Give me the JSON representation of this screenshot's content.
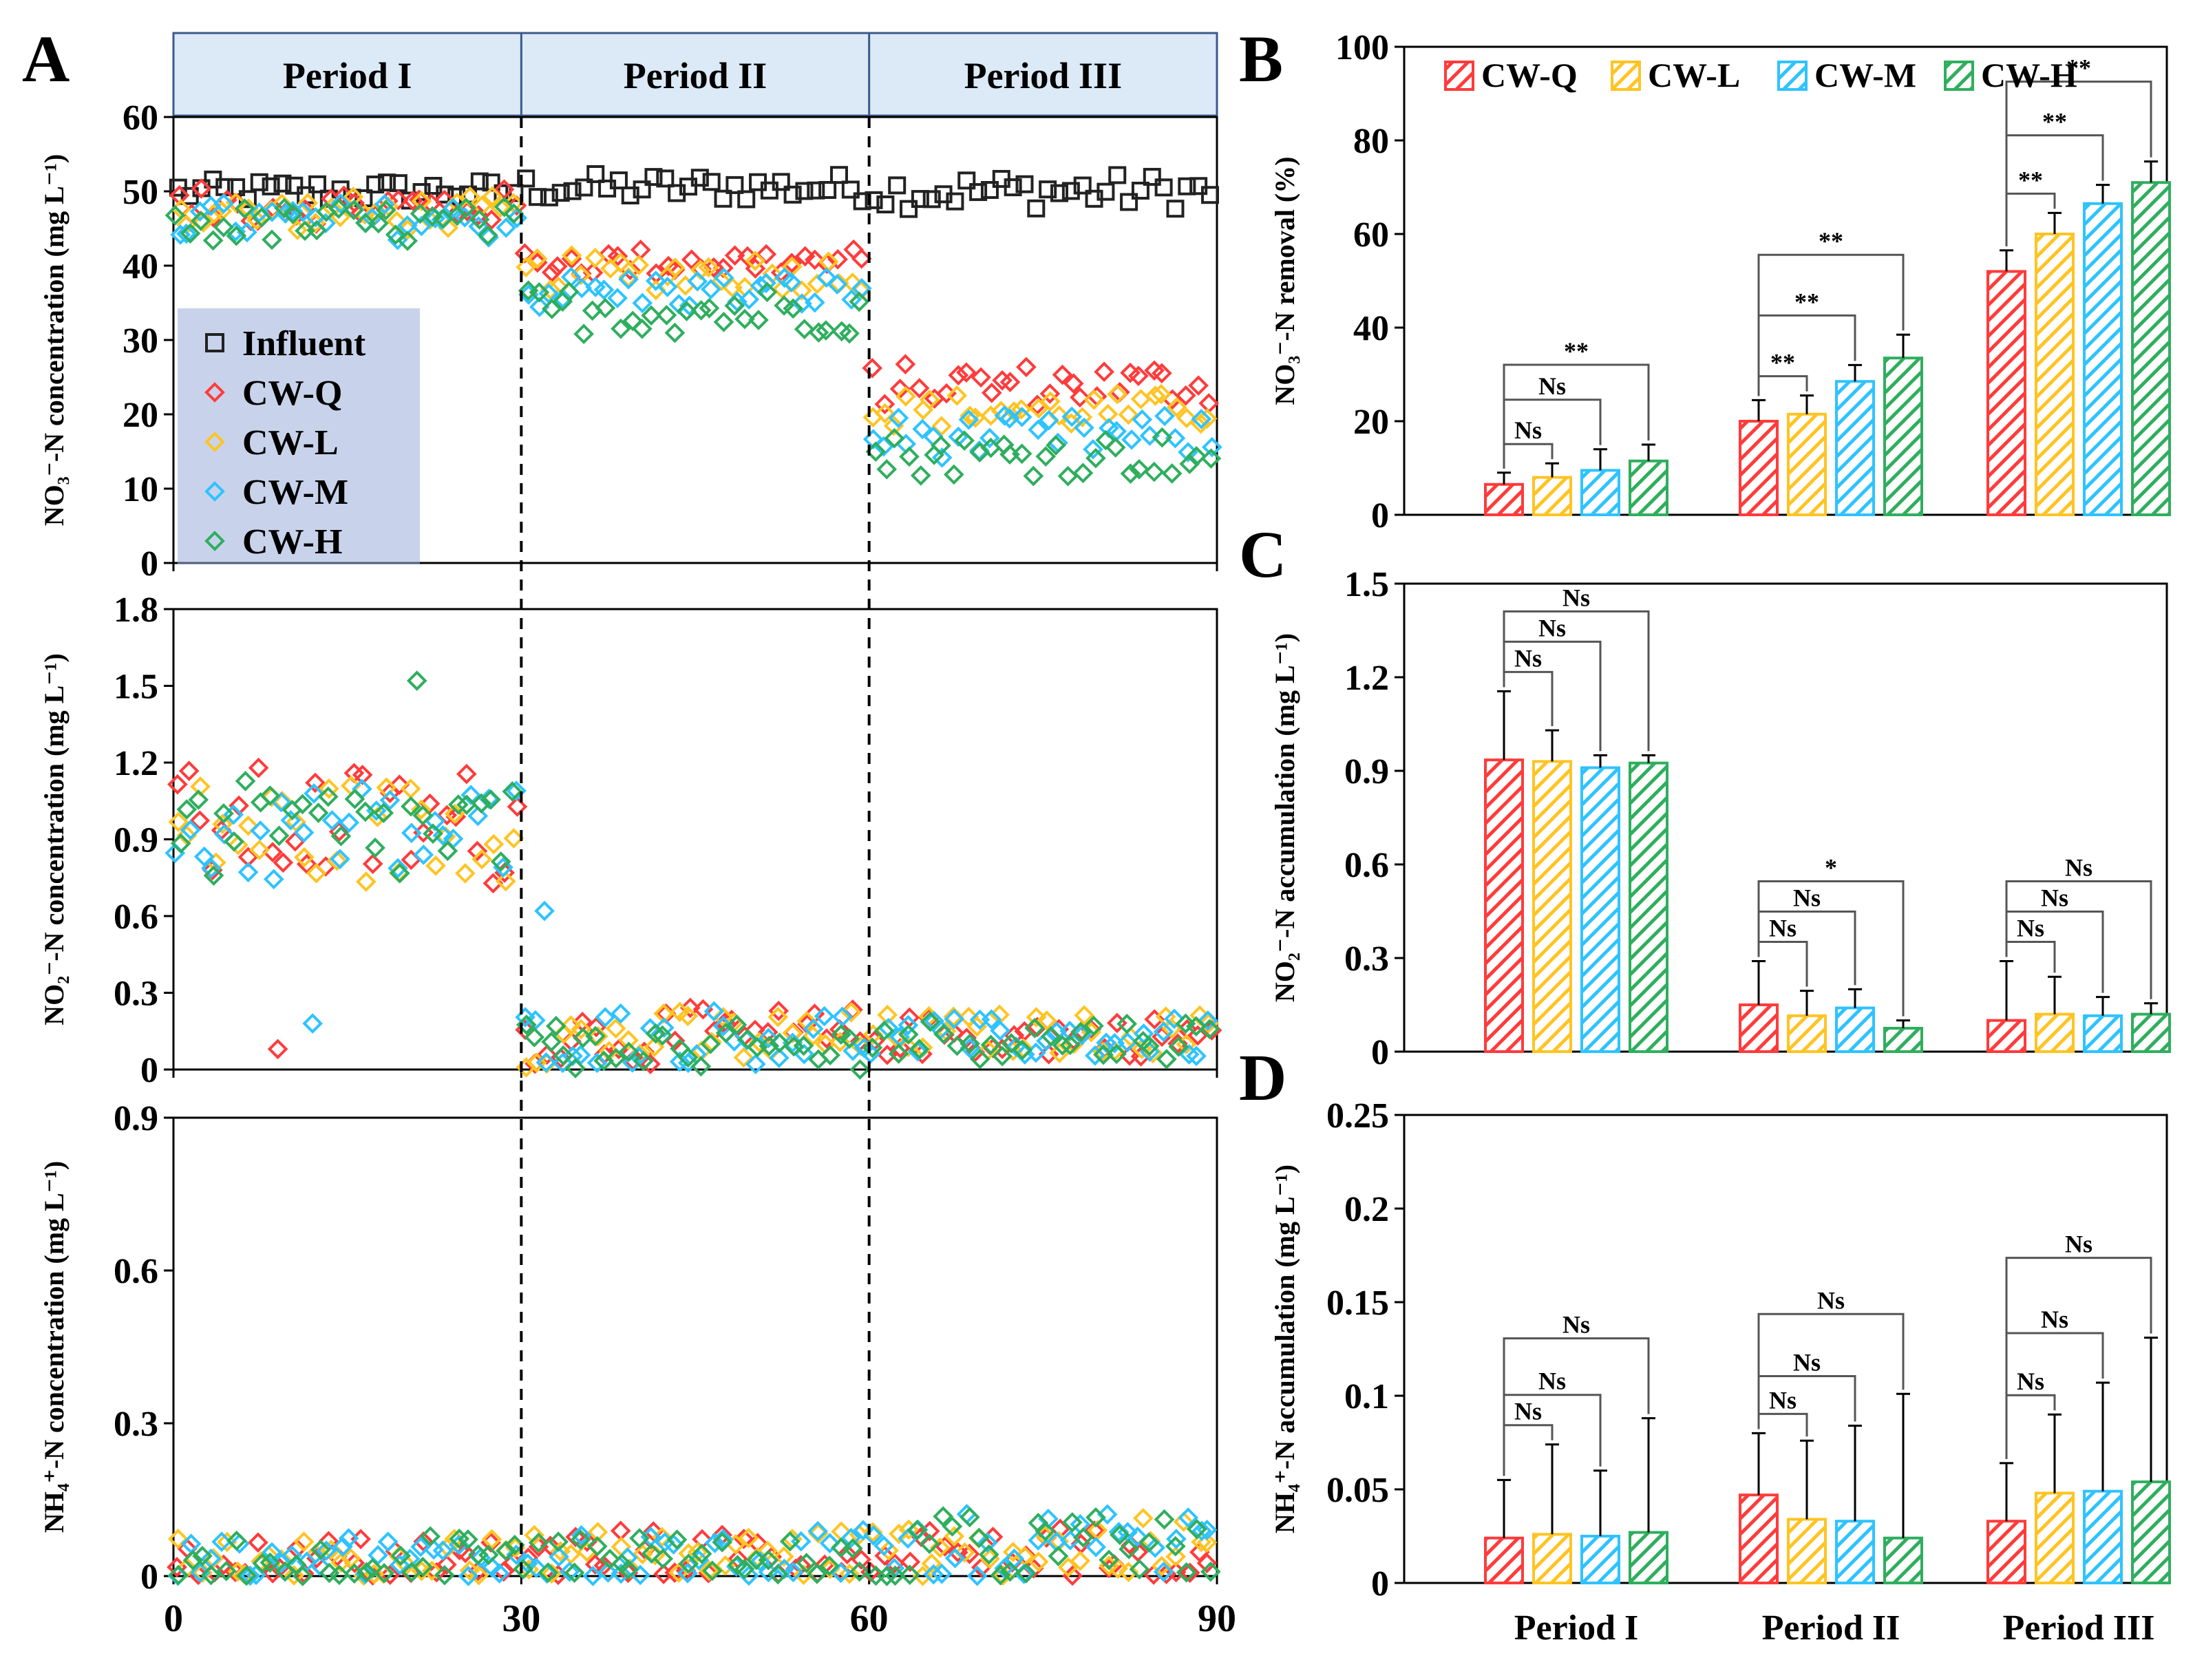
{
  "colors": {
    "influent": "#222222",
    "cw_q": "#ff3b3b",
    "cw_l": "#ffc423",
    "cw_m": "#2ec3ff",
    "cw_h": "#2fae5e",
    "period_band": "#dce9f6",
    "legend_box": "#9aaedb",
    "axis": "#000000"
  },
  "series_names": [
    "CW-Q",
    "CW-L",
    "CW-M",
    "CW-H"
  ],
  "chart_data": [
    {
      "id": "A",
      "type": "scatter",
      "panel_label": "A",
      "periods": [
        "Period I",
        "Period II",
        "Period III"
      ],
      "period_bounds": [
        0,
        30,
        60,
        90
      ],
      "xlim": [
        0,
        90
      ],
      "xticks": [
        "0",
        "30",
        "60",
        "90"
      ],
      "legend": [
        "Influent",
        "CW-Q",
        "CW-L",
        "CW-M",
        "CW-H"
      ],
      "subplots": [
        {
          "id": "A1",
          "ylabel": "NO₃⁻-N concentration (mg L⁻¹)",
          "ylim": [
            0,
            60
          ],
          "yticks": [
            "0",
            "10",
            "20",
            "30",
            "40",
            "50",
            "60"
          ],
          "influent": {
            "p1": [
              50,
              1.0
            ],
            "p2": [
              50.5,
              1.2
            ],
            "p3": [
              50,
              1.5
            ]
          },
          "series": [
            {
              "name": "CW-Q",
              "p1": [
                48,
                1.5
              ],
              "p2": [
                40.5,
                1.2
              ],
              "p3": [
                24,
                1.8
              ]
            },
            {
              "name": "CW-L",
              "p1": [
                47,
                1.5
              ],
              "p2": [
                39,
                1.5
              ],
              "p3": [
                20.5,
                1.5
              ]
            },
            {
              "name": "CW-M",
              "p1": [
                46,
                1.6
              ],
              "p2": [
                36.5,
                1.5
              ],
              "p3": [
                17,
                1.8
              ]
            },
            {
              "name": "CW-H",
              "p1": [
                45.5,
                1.6
              ],
              "p2": [
                34,
                2.0
              ],
              "p3": [
                14.5,
                1.8
              ]
            }
          ]
        },
        {
          "id": "A2",
          "ylabel": "NO₂⁻-N concentration (mg L⁻¹)",
          "ylim": [
            0,
            1.8
          ],
          "yticks": [
            "0",
            "0.3",
            "0.6",
            "0.9",
            "1.2",
            "1.5",
            "1.8"
          ],
          "series": [
            {
              "name": "CW-Q",
              "p1": [
                0.95,
                0.15
              ],
              "p2": [
                0.13,
                0.07
              ],
              "p3": [
                0.13,
                0.05
              ]
            },
            {
              "name": "CW-L",
              "p1": [
                0.93,
                0.13
              ],
              "p2": [
                0.12,
                0.07
              ],
              "p3": [
                0.14,
                0.05
              ]
            },
            {
              "name": "CW-M",
              "p1": [
                0.92,
                0.13
              ],
              "p2": [
                0.13,
                0.07
              ],
              "p3": [
                0.12,
                0.05
              ]
            },
            {
              "name": "CW-H",
              "p1": [
                0.92,
                0.13
              ],
              "p2": [
                0.08,
                0.06
              ],
              "p3": [
                0.12,
                0.05
              ]
            }
          ],
          "outliers": [
            {
              "series": "CW-Q",
              "day": 9,
              "value": 0.08
            },
            {
              "series": "CW-M",
              "day": 12,
              "value": 0.18
            },
            {
              "series": "CW-H",
              "day": 21,
              "value": 1.52
            },
            {
              "series": "CW-M",
              "day": 32,
              "value": 0.62
            },
            {
              "series": "CW-H",
              "day": 33,
              "value": 0.17
            }
          ]
        },
        {
          "id": "A3",
          "ylabel": "NH₄⁺-N concentration (mg L⁻¹)",
          "ylim": [
            0,
            0.9
          ],
          "yticks": [
            "0",
            "0.3",
            "0.6",
            "0.9"
          ],
          "series": [
            {
              "name": "CW-Q",
              "p1": [
                0.03,
                0.03
              ],
              "p2": [
                0.04,
                0.035
              ],
              "p3": [
                0.04,
                0.035
              ]
            },
            {
              "name": "CW-L",
              "p1": [
                0.03,
                0.03
              ],
              "p2": [
                0.04,
                0.035
              ],
              "p3": [
                0.05,
                0.04
              ]
            },
            {
              "name": "CW-M",
              "p1": [
                0.03,
                0.03
              ],
              "p2": [
                0.035,
                0.035
              ],
              "p3": [
                0.05,
                0.045
              ]
            },
            {
              "name": "CW-H",
              "p1": [
                0.03,
                0.03
              ],
              "p2": [
                0.03,
                0.03
              ],
              "p3": [
                0.05,
                0.045
              ]
            }
          ]
        }
      ]
    },
    {
      "id": "B",
      "type": "bar",
      "panel_label": "B",
      "ylabel": "NO₃⁻-N removal (%)",
      "ylim": [
        0,
        100
      ],
      "yticks": [
        "0",
        "20",
        "40",
        "60",
        "80",
        "100"
      ],
      "categories": [
        "Period I",
        "Period II",
        "Period III"
      ],
      "series": [
        {
          "name": "CW-Q",
          "values": [
            6.5,
            20,
            52
          ],
          "errors": [
            2.5,
            4.5,
            4.5
          ]
        },
        {
          "name": "CW-L",
          "values": [
            8,
            21.5,
            60
          ],
          "errors": [
            3,
            4,
            4.5
          ]
        },
        {
          "name": "CW-M",
          "values": [
            9.5,
            28.5,
            66.5
          ],
          "errors": [
            4.5,
            3.5,
            4
          ]
        },
        {
          "name": "CW-H",
          "values": [
            11.5,
            33.5,
            71
          ],
          "errors": [
            3.5,
            5,
            4.5
          ]
        }
      ],
      "significance": [
        [
          "Ns",
          "**",
          "**"
        ],
        [
          "Ns",
          "**",
          "**"
        ],
        [
          "**",
          "**",
          "**"
        ]
      ]
    },
    {
      "id": "C",
      "type": "bar",
      "panel_label": "C",
      "ylabel": "NO₂⁻-N accumulation (mg L⁻¹)",
      "ylim": [
        0,
        1.5
      ],
      "yticks": [
        "0",
        "0.3",
        "0.6",
        "0.9",
        "1.2",
        "1.5"
      ],
      "categories": [
        "Period I",
        "Period II",
        "Period III"
      ],
      "series": [
        {
          "name": "CW-Q",
          "values": [
            0.935,
            0.15,
            0.1
          ],
          "errors": [
            0.22,
            0.14,
            0.19
          ]
        },
        {
          "name": "CW-L",
          "values": [
            0.93,
            0.115,
            0.12
          ],
          "errors": [
            0.1,
            0.08,
            0.12
          ]
        },
        {
          "name": "CW-M",
          "values": [
            0.91,
            0.14,
            0.115
          ],
          "errors": [
            0.04,
            0.06,
            0.06
          ]
        },
        {
          "name": "CW-H",
          "values": [
            0.925,
            0.075,
            0.12
          ],
          "errors": [
            0.025,
            0.025,
            0.035
          ]
        }
      ],
      "significance": [
        [
          "Ns",
          "Ns",
          "Ns"
        ],
        [
          "Ns",
          "Ns",
          "Ns"
        ],
        [
          "Ns",
          "*",
          "Ns"
        ]
      ]
    },
    {
      "id": "D",
      "type": "bar",
      "panel_label": "D",
      "ylabel": "NH₄⁺-N accumulation (mg L⁻¹)",
      "ylim": [
        0,
        0.25
      ],
      "yticks": [
        "0",
        "0.05",
        "0.1",
        "0.15",
        "0.2",
        "0.25"
      ],
      "categories": [
        "Period I",
        "Period II",
        "Period III"
      ],
      "series": [
        {
          "name": "CW-Q",
          "values": [
            0.024,
            0.047,
            0.033
          ],
          "errors": [
            0.031,
            0.033,
            0.031
          ]
        },
        {
          "name": "CW-L",
          "values": [
            0.026,
            0.034,
            0.048
          ],
          "errors": [
            0.048,
            0.042,
            0.042
          ]
        },
        {
          "name": "CW-M",
          "values": [
            0.025,
            0.033,
            0.049
          ],
          "errors": [
            0.035,
            0.051,
            0.058
          ]
        },
        {
          "name": "CW-H",
          "values": [
            0.027,
            0.024,
            0.054
          ],
          "errors": [
            0.061,
            0.077,
            0.077
          ]
        }
      ],
      "significance": [
        [
          "Ns",
          "Ns",
          "Ns"
        ],
        [
          "Ns",
          "Ns",
          "Ns"
        ],
        [
          "Ns",
          "Ns",
          "Ns"
        ]
      ]
    }
  ]
}
